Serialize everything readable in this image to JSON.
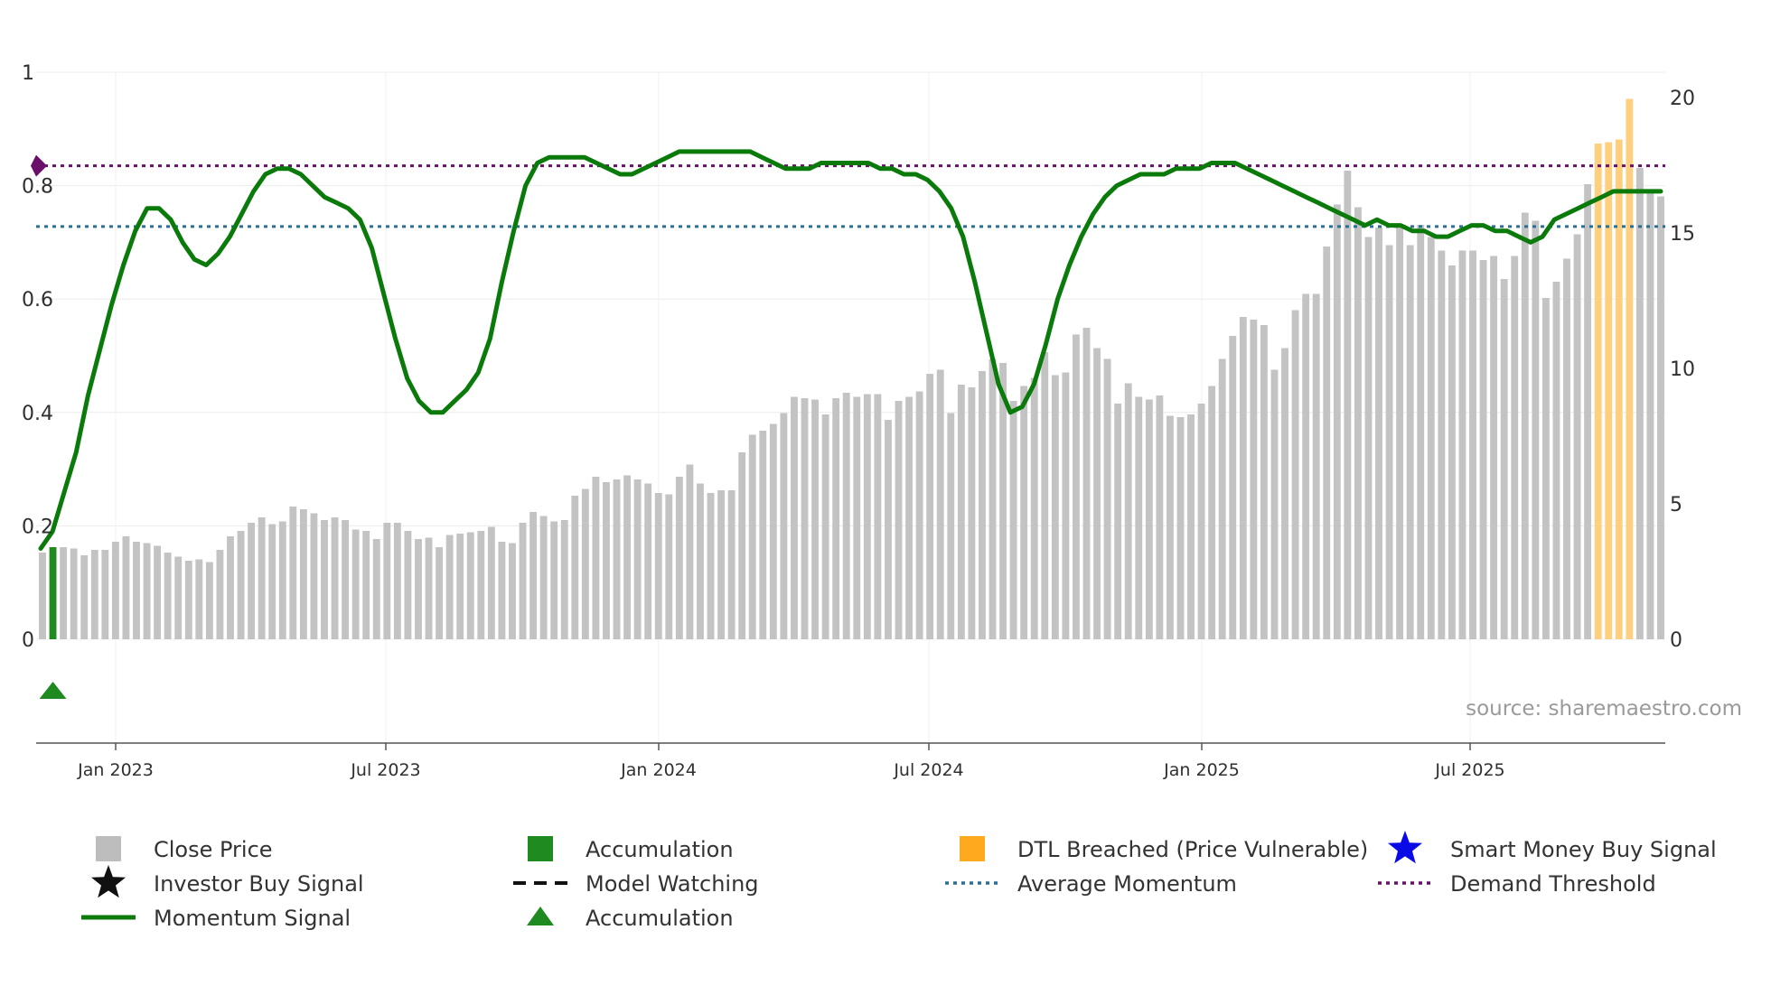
{
  "colors": {
    "price": "#c3c3c3",
    "accumulation": "#1f8a1f",
    "dtl": "#ffcf80",
    "momentum": "#0a7a0a",
    "average": "#2a6f97",
    "demand": "#6a0f6a",
    "smart_money": "#0a0ae6",
    "investor": "#111111",
    "grid": "#ececec",
    "axis": "#555555"
  },
  "source_label": "source: sharemaestro.com",
  "chart_data": {
    "type": "bar+line",
    "title": "",
    "x_ticks": [
      "Jan 2023",
      "Jul 2023",
      "Jan 2024",
      "Jul 2024",
      "Jan 2025",
      "Jul 2025"
    ],
    "y_left": {
      "range": [
        0,
        1
      ],
      "ticks": [
        "0",
        "0.2",
        "0.4",
        "0.6",
        "0.8",
        "1"
      ]
    },
    "y_right": {
      "range": [
        0,
        20
      ],
      "ticks": [
        "0",
        "5",
        "10",
        "15",
        "20"
      ]
    },
    "close_price": [
      3.2,
      3.4,
      3.4,
      3.35,
      3.1,
      3.3,
      3.3,
      3.6,
      3.8,
      3.6,
      3.55,
      3.45,
      3.2,
      3.05,
      2.9,
      2.95,
      2.85,
      3.3,
      3.8,
      4.0,
      4.3,
      4.5,
      4.25,
      4.35,
      4.9,
      4.8,
      4.65,
      4.4,
      4.5,
      4.4,
      4.05,
      4.0,
      3.7,
      4.3,
      4.3,
      4.0,
      3.7,
      3.75,
      3.4,
      3.85,
      3.9,
      3.95,
      4.0,
      4.15,
      3.6,
      3.55,
      4.3,
      4.7,
      4.55,
      4.35,
      4.4,
      5.3,
      5.55,
      6.0,
      5.8,
      5.9,
      6.05,
      5.9,
      5.75,
      5.4,
      5.35,
      6.0,
      6.45,
      5.75,
      5.4,
      5.5,
      5.5,
      6.9,
      7.55,
      7.7,
      7.95,
      8.35,
      8.95,
      8.9,
      8.85,
      8.3,
      8.9,
      9.1,
      8.95,
      9.05,
      9.05,
      8.1,
      8.8,
      8.95,
      9.15,
      9.8,
      9.95,
      8.35,
      9.4,
      9.3,
      9.9,
      10.35,
      10.2,
      8.8,
      9.35,
      9.65,
      10.6,
      9.75,
      9.85,
      11.25,
      11.5,
      10.75,
      10.35,
      8.7,
      9.45,
      8.95,
      8.85,
      9.0,
      8.25,
      8.2,
      8.3,
      8.7,
      9.35,
      10.35,
      11.2,
      11.9,
      11.8,
      11.6,
      9.95,
      10.75,
      12.15,
      12.75,
      12.75,
      14.5,
      16.05,
      17.3,
      15.95,
      14.85,
      15.2,
      14.55,
      15.2,
      14.55,
      15.3,
      14.85,
      14.35,
      13.8,
      14.35,
      14.35,
      14.0,
      14.15,
      13.3,
      14.15,
      15.75,
      15.45,
      12.6,
      13.2,
      14.05,
      14.95,
      16.8,
      18.3,
      18.35,
      18.45,
      19.95,
      17.4,
      16.55,
      16.35
    ],
    "bar_category": [
      "price",
      "accumulation",
      "price",
      "price",
      "price",
      "price",
      "price",
      "price",
      "price",
      "price",
      "price",
      "price",
      "price",
      "price",
      "price",
      "price",
      "price",
      "price",
      "price",
      "price",
      "price",
      "price",
      "price",
      "price",
      "price",
      "price",
      "price",
      "price",
      "price",
      "price",
      "price",
      "price",
      "price",
      "price",
      "price",
      "price",
      "price",
      "price",
      "price",
      "price",
      "price",
      "price",
      "price",
      "price",
      "price",
      "price",
      "price",
      "price",
      "price",
      "price",
      "price",
      "price",
      "price",
      "price",
      "price",
      "price",
      "price",
      "price",
      "price",
      "price",
      "price",
      "price",
      "price",
      "price",
      "price",
      "price",
      "price",
      "price",
      "price",
      "price",
      "price",
      "price",
      "price",
      "price",
      "price",
      "price",
      "price",
      "price",
      "price",
      "price",
      "price",
      "price",
      "price",
      "price",
      "price",
      "price",
      "price",
      "price",
      "price",
      "price",
      "price",
      "price",
      "price",
      "price",
      "price",
      "price",
      "price",
      "price",
      "price",
      "price",
      "price",
      "price",
      "price",
      "price",
      "price",
      "price",
      "price",
      "price",
      "price",
      "price",
      "price",
      "price",
      "price",
      "price",
      "price",
      "price",
      "price",
      "price",
      "price",
      "price",
      "price",
      "price",
      "price",
      "price",
      "price",
      "price",
      "price",
      "price",
      "price",
      "price",
      "price",
      "price",
      "price",
      "price",
      "price",
      "price",
      "price",
      "price",
      "price",
      "price",
      "price",
      "price",
      "price",
      "price",
      "price",
      "price",
      "price",
      "price",
      "price",
      "dtl",
      "dtl",
      "dtl",
      "dtl",
      "price",
      "price",
      "price"
    ],
    "momentum": [
      0.16,
      0.19,
      0.26,
      0.33,
      0.43,
      0.51,
      0.59,
      0.66,
      0.72,
      0.76,
      0.76,
      0.74,
      0.7,
      0.67,
      0.66,
      0.68,
      0.71,
      0.75,
      0.79,
      0.82,
      0.83,
      0.83,
      0.82,
      0.8,
      0.78,
      0.77,
      0.76,
      0.74,
      0.69,
      0.61,
      0.53,
      0.46,
      0.42,
      0.4,
      0.4,
      0.42,
      0.44,
      0.47,
      0.53,
      0.63,
      0.72,
      0.8,
      0.84,
      0.85,
      0.85,
      0.85,
      0.85,
      0.84,
      0.83,
      0.82,
      0.82,
      0.83,
      0.84,
      0.85,
      0.86,
      0.86,
      0.86,
      0.86,
      0.86,
      0.86,
      0.86,
      0.85,
      0.84,
      0.83,
      0.83,
      0.83,
      0.84,
      0.84,
      0.84,
      0.84,
      0.84,
      0.83,
      0.83,
      0.82,
      0.82,
      0.81,
      0.79,
      0.76,
      0.71,
      0.63,
      0.54,
      0.45,
      0.4,
      0.41,
      0.45,
      0.52,
      0.6,
      0.66,
      0.71,
      0.75,
      0.78,
      0.8,
      0.81,
      0.82,
      0.82,
      0.82,
      0.83,
      0.83,
      0.83,
      0.84,
      0.84,
      0.84,
      0.83,
      0.82,
      0.81,
      0.8,
      0.79,
      0.78,
      0.77,
      0.76,
      0.75,
      0.74,
      0.73,
      0.74,
      0.73,
      0.73,
      0.72,
      0.72,
      0.71,
      0.71,
      0.72,
      0.73,
      0.73,
      0.72,
      0.72,
      0.71,
      0.7,
      0.71,
      0.74,
      0.75,
      0.76,
      0.77,
      0.78,
      0.79,
      0.79,
      0.79,
      0.79,
      0.79
    ],
    "average_momentum": 0.728,
    "demand_threshold": 0.835,
    "accumulation_marker_index": 1
  },
  "legend": [
    {
      "label": "Close Price",
      "symbol": "square",
      "color": "#bdbdbd"
    },
    {
      "label": "Accumulation",
      "symbol": "square",
      "color": "#1f8a1f"
    },
    {
      "label": "DTL Breached (Price Vulnerable)",
      "symbol": "square",
      "color": "#ffa91f"
    },
    {
      "label": "Smart Money Buy Signal",
      "symbol": "star",
      "color": "#0a0ae6"
    },
    {
      "label": "Investor Buy Signal",
      "symbol": "star",
      "color": "#111111"
    },
    {
      "label": "Model Watching",
      "symbol": "dash",
      "color": "#111111"
    },
    {
      "label": "Average Momentum",
      "symbol": "dotted",
      "color": "#2a6f97"
    },
    {
      "label": "Demand Threshold",
      "symbol": "dotted",
      "color": "#6a0f6a"
    },
    {
      "label": "Momentum Signal",
      "symbol": "line",
      "color": "#0a7a0a"
    },
    {
      "label": "Accumulation",
      "symbol": "triangle",
      "color": "#1f8a1f"
    }
  ]
}
